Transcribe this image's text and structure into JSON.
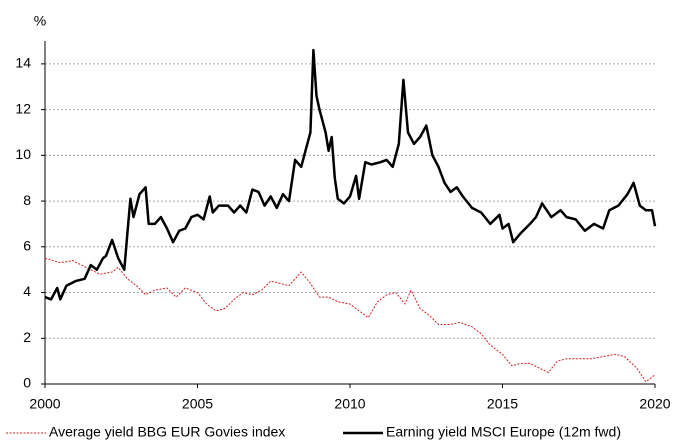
{
  "chart_data": {
    "type": "line",
    "ylabel": "%",
    "xlim": [
      2000,
      2020
    ],
    "xticks": [
      2000,
      2005,
      2010,
      2015,
      2020
    ],
    "ylim": [
      0,
      15
    ],
    "yticks": [
      0,
      2,
      4,
      6,
      8,
      10,
      12,
      14
    ],
    "grid": true,
    "legend": "bottom",
    "series": [
      {
        "name": "Average yield BBG EUR Govies index",
        "color": "#d42020",
        "style": "dashed",
        "x": [
          2000,
          2000.5,
          2000.9,
          2001.2,
          2001.5,
          2001.8,
          2002.2,
          2002.4,
          2002.7,
          2003,
          2003.3,
          2003.6,
          2004,
          2004.3,
          2004.6,
          2005,
          2005.3,
          2005.6,
          2005.9,
          2006.2,
          2006.5,
          2006.8,
          2007.1,
          2007.4,
          2007.7,
          2008,
          2008.4,
          2008.7,
          2009,
          2009.3,
          2009.6,
          2010,
          2010.3,
          2010.6,
          2010.9,
          2011.2,
          2011.5,
          2011.8,
          2012,
          2012.3,
          2012.6,
          2012.9,
          2013.3,
          2013.6,
          2014,
          2014.3,
          2014.6,
          2015,
          2015.3,
          2015.6,
          2015.9,
          2016.2,
          2016.5,
          2016.8,
          2017.1,
          2017.5,
          2017.9,
          2018.3,
          2018.7,
          2019,
          2019.4,
          2019.7,
          2020
        ],
        "values": [
          5.5,
          5.3,
          5.4,
          5.2,
          5.0,
          4.8,
          4.9,
          5.1,
          4.6,
          4.3,
          3.9,
          4.1,
          4.2,
          3.8,
          4.2,
          4.0,
          3.5,
          3.2,
          3.3,
          3.7,
          4.0,
          3.9,
          4.1,
          4.5,
          4.4,
          4.3,
          4.9,
          4.4,
          3.8,
          3.8,
          3.6,
          3.5,
          3.2,
          2.9,
          3.6,
          3.9,
          4.0,
          3.5,
          4.1,
          3.3,
          3.0,
          2.6,
          2.6,
          2.7,
          2.5,
          2.2,
          1.7,
          1.3,
          0.8,
          0.9,
          0.9,
          0.7,
          0.5,
          1.0,
          1.1,
          1.1,
          1.1,
          1.2,
          1.3,
          1.2,
          0.7,
          0.1,
          0.4
        ]
      },
      {
        "name": "Earning yield MSCI Europe (12m fwd)",
        "color": "#000000",
        "style": "solid",
        "x": [
          2000,
          2000.2,
          2000.4,
          2000.5,
          2000.7,
          2001,
          2001.3,
          2001.5,
          2001.7,
          2001.9,
          2002,
          2002.2,
          2002.4,
          2002.6,
          2002.7,
          2002.8,
          2002.9,
          2003.1,
          2003.3,
          2003.4,
          2003.6,
          2003.8,
          2004,
          2004.2,
          2004.4,
          2004.6,
          2004.8,
          2005,
          2005.2,
          2005.4,
          2005.5,
          2005.7,
          2006,
          2006.2,
          2006.4,
          2006.6,
          2006.8,
          2007,
          2007.2,
          2007.4,
          2007.6,
          2007.8,
          2008,
          2008.2,
          2008.4,
          2008.6,
          2008.7,
          2008.8,
          2008.9,
          2009,
          2009.2,
          2009.3,
          2009.4,
          2009.5,
          2009.6,
          2009.8,
          2010,
          2010.2,
          2010.3,
          2010.5,
          2010.7,
          2011,
          2011.2,
          2011.4,
          2011.6,
          2011.75,
          2011.9,
          2012.1,
          2012.3,
          2012.5,
          2012.7,
          2012.9,
          2013.1,
          2013.3,
          2013.5,
          2013.7,
          2014,
          2014.3,
          2014.6,
          2014.9,
          2015,
          2015.2,
          2015.35,
          2015.6,
          2015.9,
          2016.1,
          2016.3,
          2016.6,
          2016.9,
          2017.1,
          2017.4,
          2017.7,
          2018,
          2018.3,
          2018.5,
          2018.8,
          2019.1,
          2019.3,
          2019.5,
          2019.7,
          2019.9,
          2020
        ],
        "values": [
          3.8,
          3.7,
          4.2,
          3.7,
          4.3,
          4.5,
          4.6,
          5.2,
          5.0,
          5.5,
          5.6,
          6.3,
          5.5,
          5.0,
          6.6,
          8.1,
          7.3,
          8.3,
          8.6,
          7.0,
          7.0,
          7.3,
          6.8,
          6.2,
          6.7,
          6.8,
          7.3,
          7.4,
          7.2,
          8.2,
          7.5,
          7.8,
          7.8,
          7.5,
          7.8,
          7.5,
          8.5,
          8.4,
          7.8,
          8.2,
          7.7,
          8.3,
          8.0,
          9.8,
          9.5,
          10.5,
          11.0,
          14.6,
          12.6,
          12.0,
          11.0,
          10.2,
          10.8,
          9.0,
          8.1,
          7.9,
          8.2,
          9.1,
          8.1,
          9.7,
          9.6,
          9.7,
          9.8,
          9.5,
          10.5,
          13.3,
          11.0,
          10.5,
          10.8,
          11.3,
          10.0,
          9.5,
          8.8,
          8.4,
          8.6,
          8.2,
          7.7,
          7.5,
          7.0,
          7.4,
          6.8,
          7.0,
          6.2,
          6.6,
          7.0,
          7.3,
          7.9,
          7.3,
          7.6,
          7.3,
          7.2,
          6.7,
          7.0,
          6.8,
          7.6,
          7.8,
          8.3,
          8.8,
          7.8,
          7.6,
          7.6,
          6.9
        ]
      }
    ]
  }
}
